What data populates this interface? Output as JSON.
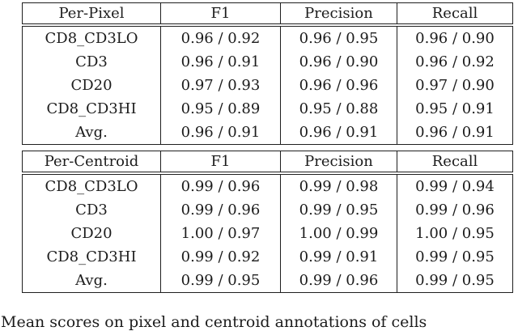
{
  "page": {
    "background": "#ffffff",
    "text_color": "#1c1c1c",
    "rule_color": "#1f1f1f"
  },
  "tables": [
    {
      "name": "per-pixel",
      "columns": [
        "Per-Pixel",
        "F1",
        "Precision",
        "Recall"
      ],
      "rows": [
        [
          "CD8_CD3LO",
          "0.96 / 0.92",
          "0.96 / 0.95",
          "0.96 / 0.90"
        ],
        [
          "CD3",
          "0.96 / 0.91",
          "0.96 / 0.90",
          "0.96 / 0.92"
        ],
        [
          "CD20",
          "0.97 / 0.93",
          "0.96 / 0.96",
          "0.97 / 0.90"
        ],
        [
          "CD8_CD3HI",
          "0.95 / 0.89",
          "0.95 / 0.88",
          "0.95 / 0.91"
        ],
        [
          "Avg.",
          "0.96 / 0.91",
          "0.96 / 0.91",
          "0.96 / 0.91"
        ]
      ]
    },
    {
      "name": "per-centroid",
      "columns": [
        "Per-Centroid",
        "F1",
        "Precision",
        "Recall"
      ],
      "rows": [
        [
          "CD8_CD3LO",
          "0.99 / 0.96",
          "0.99 / 0.98",
          "0.99 / 0.94"
        ],
        [
          "CD3",
          "0.99 / 0.96",
          "0.99 / 0.95",
          "0.99 / 0.96"
        ],
        [
          "CD20",
          "1.00 / 0.97",
          "1.00 / 0.99",
          "1.00 / 0.95"
        ],
        [
          "CD8_CD3HI",
          "0.99 / 0.92",
          "0.99 / 0.91",
          "0.99 / 0.95"
        ],
        [
          "Avg.",
          "0.99 / 0.95",
          "0.99 / 0.96",
          "0.99 / 0.95"
        ]
      ]
    }
  ],
  "caption": {
    "visible_fragment": "Mean scores on pixel and centroid annotations of cells"
  }
}
